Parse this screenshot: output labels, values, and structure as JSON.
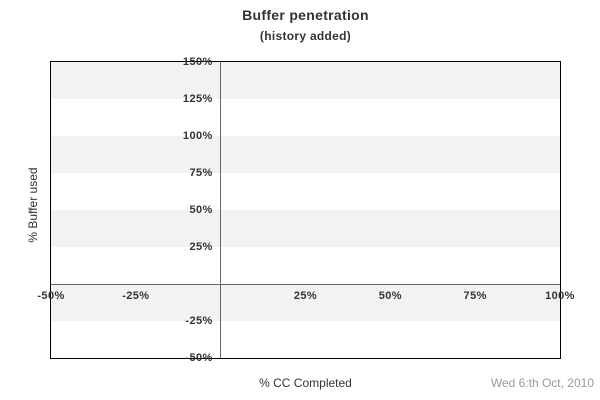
{
  "footer": {
    "date": "Wed 6:th Oct, 2010"
  },
  "chart_data": {
    "type": "line",
    "title": "Buffer penetration",
    "subtitle": "(history added)",
    "xlabel": "% CC Completed",
    "ylabel": "% Buffer used",
    "xlim": [
      -50,
      100
    ],
    "ylim": [
      -50,
      150
    ],
    "x_ticks": [
      {
        "value": -50,
        "label": "-50%"
      },
      {
        "value": -25,
        "label": "-25%"
      },
      {
        "value": 25,
        "label": "25%"
      },
      {
        "value": 50,
        "label": "50%"
      },
      {
        "value": 75,
        "label": "75%"
      },
      {
        "value": 100,
        "label": "100%"
      }
    ],
    "y_ticks": [
      {
        "value": 150,
        "label": "150%"
      },
      {
        "value": 125,
        "label": "125%"
      },
      {
        "value": 100,
        "label": "100%"
      },
      {
        "value": 75,
        "label": "75%"
      },
      {
        "value": 50,
        "label": "50%"
      },
      {
        "value": 25,
        "label": "25%"
      },
      {
        "value": -25,
        "label": "-25%"
      },
      {
        "value": -50,
        "label": "-50%"
      }
    ],
    "band_step": 25,
    "grid": "alternating horizontal bands, gray band starts at top (150%-125%)",
    "legend": "none",
    "series": [],
    "colors": {
      "band": "#f2f2f2",
      "plot_background": "#ffffff",
      "plot_border": "#000000",
      "axis_line": "#666666",
      "tick_text": "#333333",
      "title_text": "#333333",
      "date_text": "#999999"
    }
  }
}
